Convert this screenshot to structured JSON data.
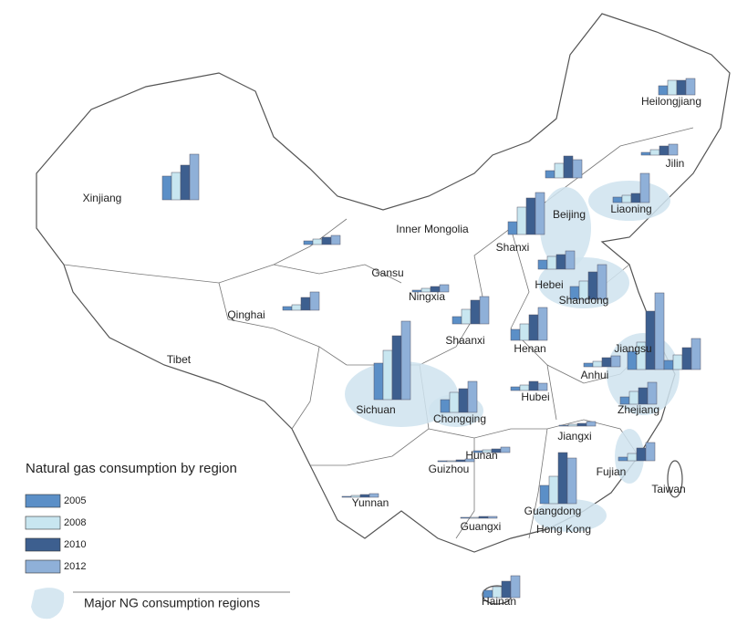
{
  "chart_data": {
    "type": "bar-map",
    "title": "Natural gas consumption by region",
    "highlight_label": "Major NG consumption regions",
    "categories": [
      "Xinjiang",
      "Heilongjiang",
      "Jilin",
      "Liaoning",
      "Beijing",
      "Shanxi",
      "Inner Mongolia",
      "Ningxia",
      "Hebei",
      "Shandong",
      "Shaanxi",
      "Qinghai",
      "Sichuan",
      "Chongqing",
      "Henan",
      "Hubei",
      "Jiangsu",
      null,
      "Anhui",
      "Zhejiang",
      "Jiangxi",
      "Hunan",
      "Guizhou",
      "Fujian",
      "Guangdong",
      "Yunnan",
      "Guangxi",
      "Hainan"
    ],
    "series": [
      {
        "name": "2005",
        "color": "#5b8fc7",
        "values": [
          26,
          10,
          3,
          6,
          8,
          14,
          4,
          2,
          10,
          14,
          8,
          4,
          40,
          14,
          12,
          4,
          20,
          10,
          4,
          8,
          1,
          2,
          1,
          4,
          20,
          1,
          1,
          8
        ]
      },
      {
        "name": "2008",
        "color": "#c8e6f0",
        "values": [
          30,
          16,
          6,
          8,
          16,
          30,
          6,
          4,
          14,
          20,
          16,
          6,
          54,
          22,
          18,
          6,
          30,
          16,
          6,
          14,
          2,
          3,
          1,
          8,
          30,
          2,
          1,
          12
        ]
      },
      {
        "name": "2010",
        "color": "#3d5f8f",
        "values": [
          38,
          16,
          10,
          10,
          24,
          40,
          8,
          6,
          16,
          30,
          26,
          14,
          70,
          26,
          28,
          10,
          64,
          24,
          10,
          18,
          3,
          4,
          2,
          14,
          56,
          3,
          2,
          18
        ]
      },
      {
        "name": "2012",
        "color": "#8fb0d8",
        "values": [
          50,
          18,
          12,
          32,
          20,
          46,
          10,
          8,
          20,
          38,
          30,
          20,
          86,
          34,
          36,
          8,
          84,
          34,
          12,
          24,
          5,
          6,
          3,
          20,
          50,
          4,
          2,
          24
        ]
      }
    ],
    "other_labels": [
      "Tibet",
      "Gansu",
      "Taiwan",
      "Hong Kong"
    ]
  }
}
